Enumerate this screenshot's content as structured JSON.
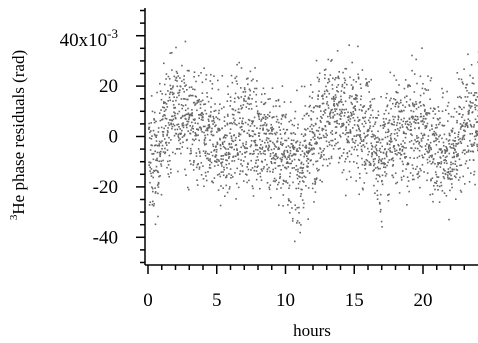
{
  "chart_data": {
    "type": "scatter",
    "title": "",
    "xlabel": "hours",
    "ylabel": "He phase residuals (rad)",
    "ylabel_superscript": "3",
    "y_top_label": "40x10",
    "y_top_label_exponent": "-3",
    "xlim": [
      0,
      24
    ],
    "ylim": [
      -0.051,
      0.051
    ],
    "x_ticks": [
      0,
      5,
      10,
      15,
      20
    ],
    "x_tick_labels": [
      "0",
      "5",
      "10",
      "15",
      "20"
    ],
    "y_ticks": [
      -0.04,
      -0.02,
      0,
      0.02
    ],
    "y_tick_labels": [
      "-40",
      "-20",
      "0",
      "20"
    ],
    "y_top_tick": 0.04,
    "grid": false,
    "legend": "none",
    "marker_color": "#666666",
    "series": [
      {
        "values_description_note": "",
        "x_start": 0,
        "x_end": 24,
        "trend": [
          {
            "x": 0.0,
            "y": -0.008
          },
          {
            "x": 0.5,
            "y": -0.01
          },
          {
            "x": 1.0,
            "y": 0.002
          },
          {
            "x": 1.5,
            "y": 0.01
          },
          {
            "x": 2.0,
            "y": 0.012
          },
          {
            "x": 3.0,
            "y": 0.007
          },
          {
            "x": 4.0,
            "y": 0.003
          },
          {
            "x": 5.0,
            "y": -0.005
          },
          {
            "x": 6.0,
            "y": 0.0
          },
          {
            "x": 7.0,
            "y": 0.004
          },
          {
            "x": 8.0,
            "y": 0.002
          },
          {
            "x": 9.0,
            "y": -0.002
          },
          {
            "x": 10.0,
            "y": -0.006
          },
          {
            "x": 10.8,
            "y": -0.014
          },
          {
            "x": 11.5,
            "y": -0.006
          },
          {
            "x": 12.5,
            "y": 0.008
          },
          {
            "x": 13.0,
            "y": 0.01
          },
          {
            "x": 14.0,
            "y": 0.006
          },
          {
            "x": 15.0,
            "y": 0.005
          },
          {
            "x": 16.0,
            "y": 0.004
          },
          {
            "x": 16.8,
            "y": -0.01
          },
          {
            "x": 17.5,
            "y": 0.0
          },
          {
            "x": 18.0,
            "y": 0.003
          },
          {
            "x": 19.0,
            "y": 0.002
          },
          {
            "x": 20.0,
            "y": 0.004
          },
          {
            "x": 21.0,
            "y": -0.004
          },
          {
            "x": 22.0,
            "y": -0.008
          },
          {
            "x": 23.0,
            "y": 0.006
          },
          {
            "x": 24.0,
            "y": 0.004
          }
        ],
        "spread": 0.011,
        "count": 2600
      }
    ]
  }
}
